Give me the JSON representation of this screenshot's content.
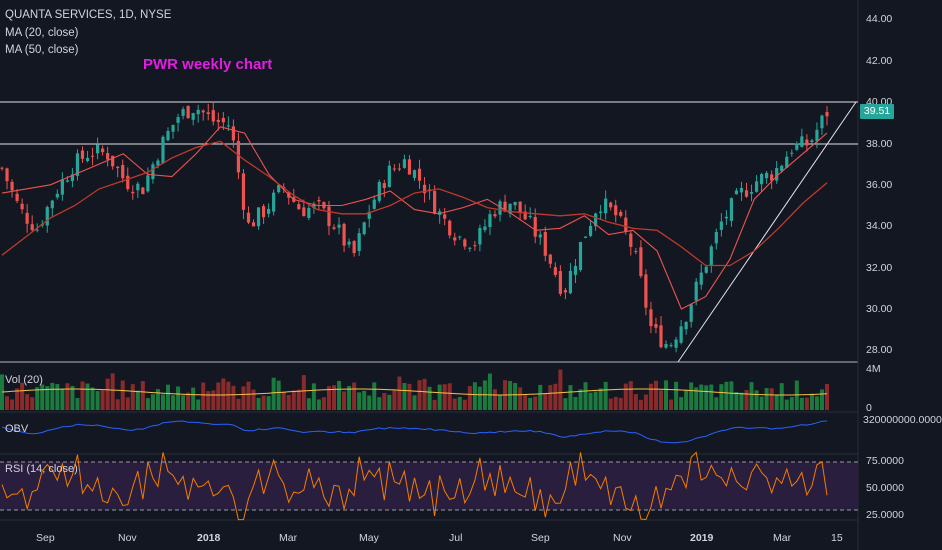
{
  "header": {
    "symbol_line": "QUANTA SERVICES, 1D, NYSE",
    "ma20_label": "MA (20, close)",
    "ma50_label": "MA (50, close)"
  },
  "annotation": "PWR weekly chart",
  "panes": {
    "vol_label": "Vol (20)",
    "obv_label": "OBV",
    "rsi_label": "RSI (14, close)"
  },
  "colors": {
    "background": "#131722",
    "up": "#26a69a",
    "down": "#ef5350",
    "ma20": "#ef5350",
    "ma50": "#c0392b",
    "obv": "#2962ff",
    "rsi": "#f57c00",
    "rsi_band": "#2a1e3f",
    "annotation": "#e11ee1"
  },
  "chart_data": [
    {
      "type": "candlestick",
      "title": "QUANTA SERVICES, 1D, NYSE",
      "x_tick_labels": [
        "Sep",
        "Nov",
        "2018",
        "Mar",
        "May",
        "Jul",
        "Sep",
        "Nov",
        "2019",
        "Mar",
        "15"
      ],
      "y_tick_labels": [
        "28.00",
        "30.00",
        "32.00",
        "34.00",
        "36.00",
        "38.00",
        "40.00",
        "42.00",
        "44.00"
      ],
      "ylim": [
        27.2,
        45
      ],
      "last_price": "39.51",
      "horizontal_lines": [
        40.0,
        38.0
      ],
      "trendline": {
        "from": {
          "date": "Dec 2018",
          "price": 27.7
        },
        "to": {
          "date": "Mar 2019",
          "price": 40.0
        }
      },
      "close_path": [
        [
          "Jul 2017",
          36.8
        ],
        [
          "Aug 2017",
          34.8
        ],
        [
          "Aug 2017",
          33.9
        ],
        [
          "Sep 2017",
          35.6
        ],
        [
          "Sep 2017",
          36.9
        ],
        [
          "Oct 2017",
          37.6
        ],
        [
          "Oct 2017",
          37.5
        ],
        [
          "Nov 2017",
          36.2
        ],
        [
          "Nov 2017",
          35.8
        ],
        [
          "Dec 2017",
          37.8
        ],
        [
          "Dec 2017",
          39.3
        ],
        [
          "Jan 2018",
          39.8
        ],
        [
          "Jan 2018",
          39.1
        ],
        [
          "Feb 2018",
          38.9
        ],
        [
          "Feb 2018",
          34.0
        ],
        [
          "Feb 2018",
          34.8
        ],
        [
          "Mar 2018",
          35.9
        ],
        [
          "Mar 2018",
          34.8
        ],
        [
          "Apr 2018",
          34.9
        ],
        [
          "Apr 2018",
          34.0
        ],
        [
          "May 2018",
          32.5
        ],
        [
          "May 2018",
          35.0
        ],
        [
          "Jun 2018",
          36.6
        ],
        [
          "Jun 2018",
          37.2
        ],
        [
          "Jul 2018",
          36.0
        ],
        [
          "Jul 2018",
          34.5
        ],
        [
          "Aug 2018",
          33.5
        ],
        [
          "Aug 2018",
          33.2
        ],
        [
          "Sep 2018",
          34.8
        ],
        [
          "Sep 2018",
          35.2
        ],
        [
          "Oct 2018",
          34.2
        ],
        [
          "Oct 2018",
          32.8
        ],
        [
          "Oct 2018",
          30.8
        ],
        [
          "Nov 2018",
          33.2
        ],
        [
          "Nov 2018",
          35.2
        ],
        [
          "Nov 2018",
          34.5
        ],
        [
          "Dec 2018",
          32.8
        ],
        [
          "Dec 2018",
          29.0
        ],
        [
          "Dec 2018",
          28.2
        ],
        [
          "Jan 2019",
          29.8
        ],
        [
          "Jan 2019",
          32.0
        ],
        [
          "Feb 2019",
          34.2
        ],
        [
          "Feb 2019",
          35.5
        ],
        [
          "Feb 2019",
          36.2
        ],
        [
          "Mar 2019",
          36.6
        ],
        [
          "Mar 2019",
          37.8
        ],
        [
          "Mar 2019",
          38.0
        ],
        [
          "Mar 2019",
          39.51
        ]
      ],
      "series": [
        {
          "name": "MA (20, close)",
          "values": [
            35.6,
            35.8,
            36.0,
            36.5,
            37.0,
            37.5,
            36.5,
            36.4,
            37.5,
            38.8,
            38.5,
            36.5,
            35.3,
            35.0,
            35.0,
            35.3,
            35.7,
            34.8,
            34.6,
            34.9,
            35.3,
            34.6,
            33.8,
            33.9,
            34.5,
            33.6,
            33.8,
            32.8,
            30.0,
            30.6,
            32.4,
            35.3,
            36.5,
            37.5,
            38.5
          ]
        },
        {
          "name": "MA (50, close)",
          "values": [
            32.6,
            33.5,
            34.4,
            35.0,
            35.8,
            36.2,
            36.6,
            37.3,
            37.8,
            38.1,
            37.2,
            36.4,
            35.5,
            34.8,
            34.6,
            34.6,
            35.0,
            35.6,
            35.8,
            35.4,
            34.9,
            34.7,
            34.6,
            34.5,
            34.6,
            34.2,
            33.9,
            33.8,
            33.0,
            32.1,
            32.1,
            32.8,
            33.9,
            35.1,
            36.1
          ]
        }
      ]
    },
    {
      "type": "bar",
      "title": "Vol (20)",
      "y_tick_labels": [
        "0",
        "4M"
      ],
      "note": "daily volume bars with 20-period average"
    },
    {
      "type": "line",
      "title": "OBV",
      "y_tick_labels": [
        "320000000.0000"
      ]
    },
    {
      "type": "line",
      "title": "RSI (14, close)",
      "y_tick_labels": [
        "25.0000",
        "50.0000",
        "75.0000"
      ],
      "bands": [
        30,
        70
      ]
    }
  ]
}
